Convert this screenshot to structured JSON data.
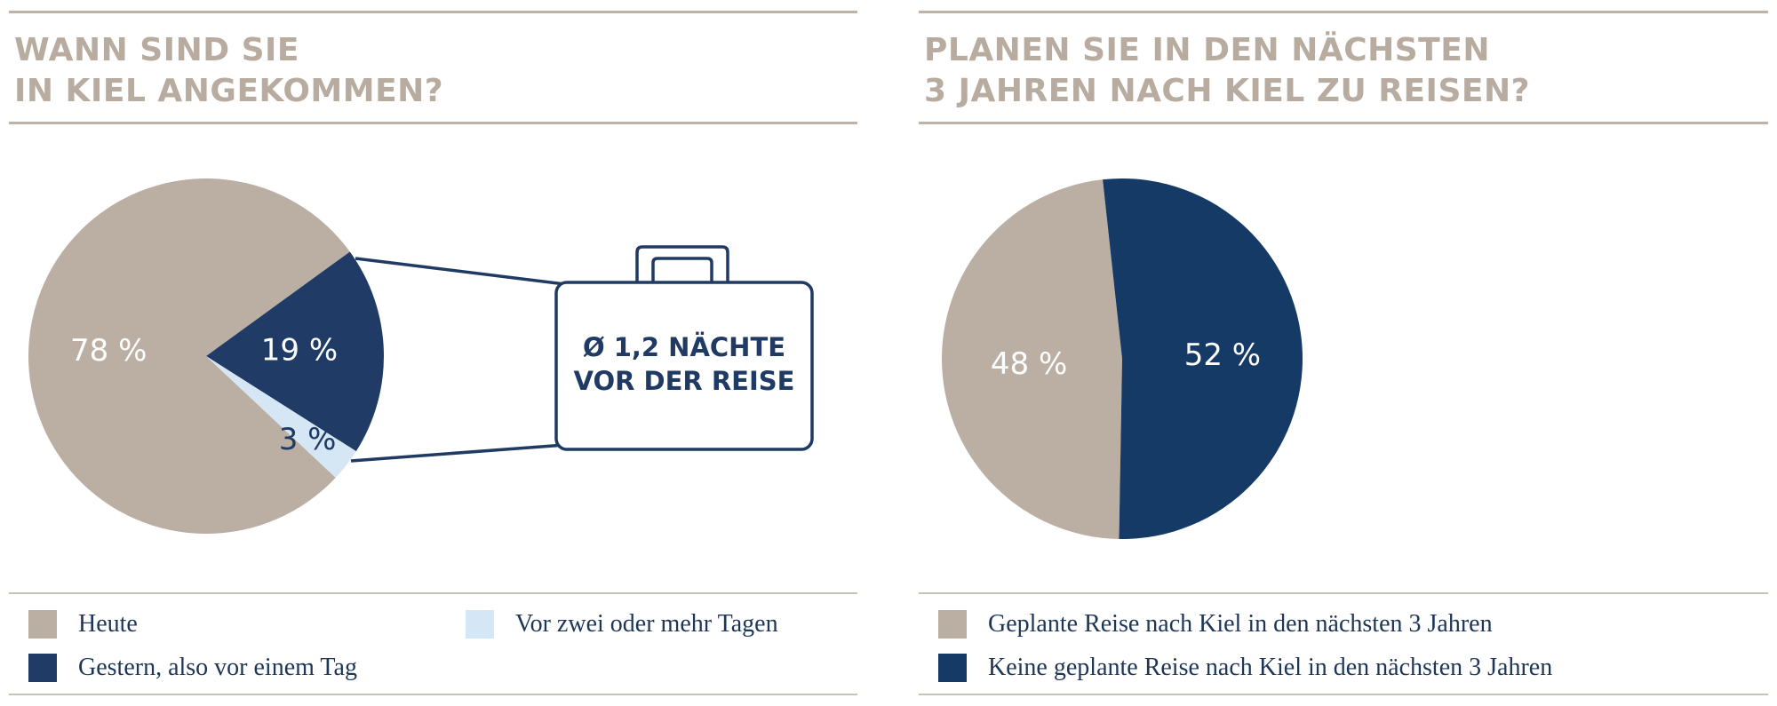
{
  "colors": {
    "beige": "#bbafa4",
    "navy_left": "#203c66",
    "light_blue": "#d5e6f5",
    "navy_right": "#153a66",
    "title": "#b8aca1",
    "rule": "#beb3a8"
  },
  "chart_data": [
    {
      "type": "pie",
      "title_lines": [
        "WANN SIND SIE",
        "IN KIEL ANGEKOMMEN?"
      ],
      "slices": [
        {
          "name": "Heute",
          "value": 78,
          "label": "78 %",
          "color": "#bbafa4"
        },
        {
          "name": "Gestern, also vor einem Tag",
          "value": 19,
          "label": "19 %",
          "color": "#203c66"
        },
        {
          "name": "Vor zwei oder mehr Tagen",
          "value": 3,
          "label": "3 %",
          "color": "#d5e6f5"
        }
      ],
      "callout": {
        "icon": "suitcase-icon",
        "lines": [
          "Ø 1,2 NÄCHTE",
          "VOR DER REISE"
        ]
      },
      "legend": [
        "Heute",
        "Vor zwei oder mehr Tagen",
        "Gestern, also vor einem Tag"
      ]
    },
    {
      "type": "pie",
      "title_lines": [
        "PLANEN SIE IN DEN NÄCHSTEN",
        "3 JAHREN NACH KIEL ZU REISEN?"
      ],
      "slices": [
        {
          "name": "Geplante Reise nach Kiel in den nächsten 3 Jahren",
          "value": 48,
          "label": "48 %",
          "color": "#bbafa4"
        },
        {
          "name": "Keine geplante Reise nach Kiel in den nächsten 3 Jahren",
          "value": 52,
          "label": "52 %",
          "color": "#153a66"
        }
      ],
      "legend": [
        "Geplante Reise nach Kiel in den nächsten 3 Jahren",
        "Keine geplante Reise nach Kiel in den nächsten 3 Jahren"
      ]
    }
  ]
}
